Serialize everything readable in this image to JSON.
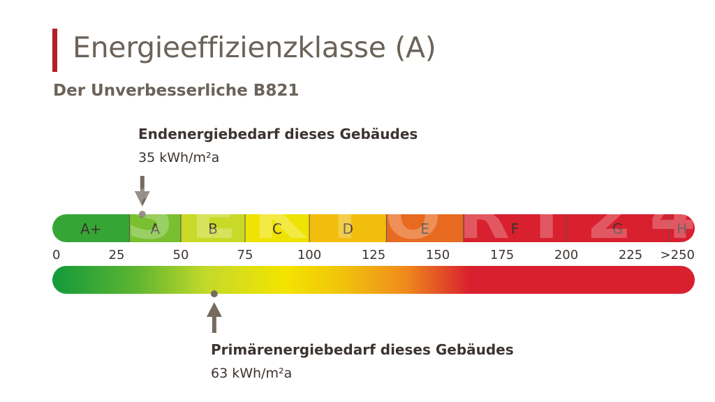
{
  "header": {
    "title": "Energieeffizienzklasse (A)",
    "subtitle": "Der Unverbesserliche B821"
  },
  "colors": {
    "accent": "#b1202a",
    "text": "#6b6258",
    "marker": "#756b60",
    "scale_green": "#129a3a",
    "scale_yellow": "#f3e400",
    "scale_orange": "#ef8a1c",
    "scale_red": "#d8202e"
  },
  "watermark": "SEKTORT24",
  "chart_data": {
    "type": "bar",
    "title": "Energieeffizienzklasse (A)",
    "xlim": [
      0,
      250
    ],
    "ticks": [
      {
        "value": 0,
        "label": "0"
      },
      {
        "value": 25,
        "label": "25"
      },
      {
        "value": 50,
        "label": "50"
      },
      {
        "value": 75,
        "label": "75"
      },
      {
        "value": 100,
        "label": "100"
      },
      {
        "value": 125,
        "label": "125"
      },
      {
        "value": 150,
        "label": "150"
      },
      {
        "value": 175,
        "label": "175"
      },
      {
        "value": 200,
        "label": "200"
      },
      {
        "value": 225,
        "label": "225"
      },
      {
        "value": 250,
        "label": ">250"
      }
    ],
    "classes": [
      {
        "label": "A+",
        "from": 0,
        "to": 30
      },
      {
        "label": "A",
        "from": 30,
        "to": 50
      },
      {
        "label": "B",
        "from": 50,
        "to": 75
      },
      {
        "label": "C",
        "from": 75,
        "to": 100
      },
      {
        "label": "D",
        "from": 100,
        "to": 130
      },
      {
        "label": "E",
        "from": 130,
        "to": 160
      },
      {
        "label": "F",
        "from": 160,
        "to": 200
      },
      {
        "label": "G",
        "from": 200,
        "to": 240
      },
      {
        "label": "H",
        "from": 240,
        "to": 250
      }
    ],
    "markers": [
      {
        "label": "Endenergiebedarf dieses Gebäudes",
        "value": 35,
        "value_text": "35 kWh/m²a",
        "position": "top"
      },
      {
        "label": "Primärenergiebedarf dieses Gebäudes",
        "value": 63,
        "value_text": "63 kWh/m²a",
        "position": "bottom"
      }
    ]
  }
}
